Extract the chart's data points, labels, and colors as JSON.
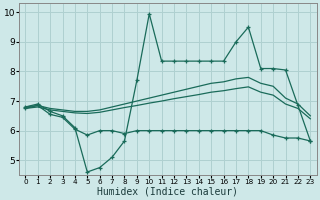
{
  "xlabel": "Humidex (Indice chaleur)",
  "bg_color": "#cee8e8",
  "grid_color": "#afd0d0",
  "line_color": "#1a6b5a",
  "xlim": [
    -0.5,
    23.5
  ],
  "ylim": [
    4.5,
    10.3
  ],
  "yticks": [
    5,
    6,
    7,
    8,
    9,
    10
  ],
  "xticks": [
    0,
    1,
    2,
    3,
    4,
    5,
    6,
    7,
    8,
    9,
    10,
    11,
    12,
    13,
    14,
    15,
    16,
    17,
    18,
    19,
    20,
    21,
    22,
    23
  ],
  "line_spiky_x": [
    0,
    1,
    2,
    3,
    4,
    5,
    6,
    7,
    8,
    9,
    10,
    11,
    12,
    13,
    14,
    15,
    16,
    17,
    18,
    19,
    20,
    21,
    22,
    23
  ],
  "line_spiky_y": [
    6.8,
    6.9,
    6.65,
    6.5,
    6.1,
    4.6,
    4.75,
    5.1,
    5.65,
    7.7,
    9.95,
    8.35,
    8.35,
    8.35,
    8.35,
    8.35,
    8.35,
    9.0,
    9.5,
    8.1,
    8.1,
    8.05,
    6.85,
    5.65
  ],
  "line_flat_x": [
    0,
    1,
    2,
    3,
    4,
    5,
    6,
    7,
    8,
    9,
    10,
    11,
    12,
    13,
    14,
    15,
    16,
    17,
    18,
    19,
    20,
    21,
    22,
    23
  ],
  "line_flat_y": [
    6.75,
    6.85,
    6.55,
    6.45,
    6.05,
    5.85,
    6.0,
    6.0,
    5.9,
    6.0,
    6.0,
    6.0,
    6.0,
    6.0,
    6.0,
    6.0,
    6.0,
    6.0,
    6.0,
    6.0,
    5.85,
    5.75,
    5.75,
    5.65
  ],
  "line_trend1_x": [
    0,
    1,
    2,
    3,
    4,
    5,
    6,
    7,
    8,
    9,
    10,
    11,
    12,
    13,
    14,
    15,
    16,
    17,
    18,
    19,
    20,
    21,
    22,
    23
  ],
  "line_trend1_y": [
    6.8,
    6.85,
    6.75,
    6.7,
    6.65,
    6.65,
    6.7,
    6.8,
    6.9,
    7.0,
    7.1,
    7.2,
    7.3,
    7.4,
    7.5,
    7.6,
    7.65,
    7.75,
    7.8,
    7.6,
    7.5,
    7.1,
    6.9,
    6.5
  ],
  "line_trend2_x": [
    0,
    1,
    2,
    3,
    4,
    5,
    6,
    7,
    8,
    9,
    10,
    11,
    12,
    13,
    14,
    15,
    16,
    17,
    18,
    19,
    20,
    21,
    22,
    23
  ],
  "line_trend2_y": [
    6.75,
    6.8,
    6.7,
    6.65,
    6.6,
    6.58,
    6.62,
    6.7,
    6.78,
    6.85,
    6.93,
    7.0,
    7.08,
    7.15,
    7.22,
    7.3,
    7.35,
    7.42,
    7.48,
    7.3,
    7.2,
    6.9,
    6.75,
    6.4
  ]
}
